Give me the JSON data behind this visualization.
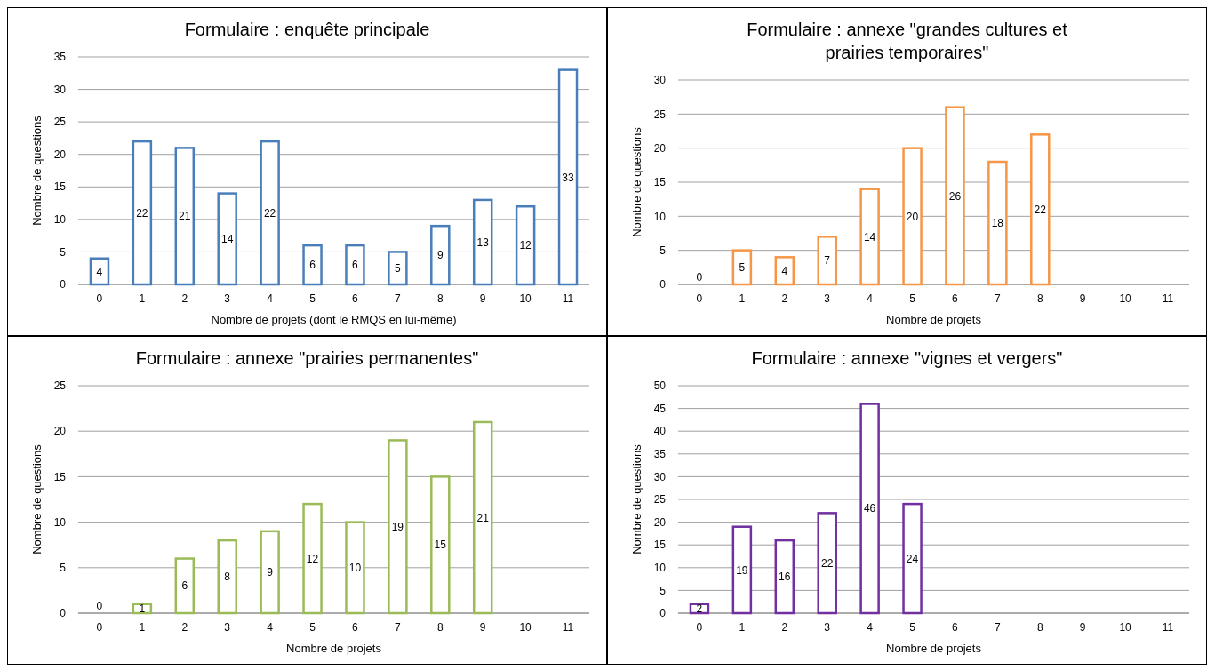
{
  "chart_data": [
    {
      "type": "bar",
      "title": "Formulaire : enquête principale",
      "xlabel": "Nombre de projets (dont le RMQS en lui-même)",
      "ylabel": "Nombre de questions",
      "categories": [
        "0",
        "1",
        "2",
        "3",
        "4",
        "5",
        "6",
        "7",
        "8",
        "9",
        "10",
        "11"
      ],
      "values": [
        4,
        22,
        21,
        14,
        22,
        6,
        6,
        5,
        9,
        13,
        12,
        33
      ],
      "color": "#4a7ebb",
      "ylim": [
        0,
        35
      ],
      "yticks": [
        0,
        5,
        10,
        15,
        20,
        25,
        30,
        35
      ],
      "grid": "y",
      "data_labels": true
    },
    {
      "type": "bar",
      "title": "Formulaire : annexe \"grandes cultures et prairies temporaires\"",
      "xlabel": "Nombre de projets",
      "ylabel": "Nombre de questions",
      "categories": [
        "0",
        "1",
        "2",
        "3",
        "4",
        "5",
        "6",
        "7",
        "8",
        "9",
        "10",
        "11"
      ],
      "values": [
        0,
        5,
        4,
        7,
        14,
        20,
        26,
        18,
        22,
        null,
        null,
        null
      ],
      "color": "#f79646",
      "ylim": [
        0,
        30
      ],
      "yticks": [
        0,
        5,
        10,
        15,
        20,
        25,
        30
      ],
      "grid": "y",
      "data_labels": true
    },
    {
      "type": "bar",
      "title": "Formulaire : annexe \"prairies permanentes\"",
      "xlabel": "Nombre de projets",
      "ylabel": "Nombre de questions",
      "categories": [
        "0",
        "1",
        "2",
        "3",
        "4",
        "5",
        "6",
        "7",
        "8",
        "9",
        "10",
        "11"
      ],
      "values": [
        0,
        1,
        6,
        8,
        9,
        12,
        10,
        19,
        15,
        21,
        null,
        null
      ],
      "color": "#9bbb59",
      "ylim": [
        0,
        25
      ],
      "yticks": [
        0,
        5,
        10,
        15,
        20,
        25
      ],
      "grid": "y",
      "data_labels": true
    },
    {
      "type": "bar",
      "title": "Formulaire : annexe \"vignes et vergers\"",
      "xlabel": "Nombre de projets",
      "ylabel": "Nombre de questions",
      "categories": [
        "0",
        "1",
        "2",
        "3",
        "4",
        "5",
        "6",
        "7",
        "8",
        "9",
        "10",
        "11"
      ],
      "values": [
        2,
        19,
        16,
        22,
        46,
        24,
        null,
        null,
        null,
        null,
        null,
        null
      ],
      "color": "#7030a0",
      "ylim": [
        0,
        50
      ],
      "yticks": [
        0,
        5,
        10,
        15,
        20,
        25,
        30,
        35,
        40,
        45,
        50
      ],
      "grid": "y",
      "data_labels": true
    }
  ]
}
